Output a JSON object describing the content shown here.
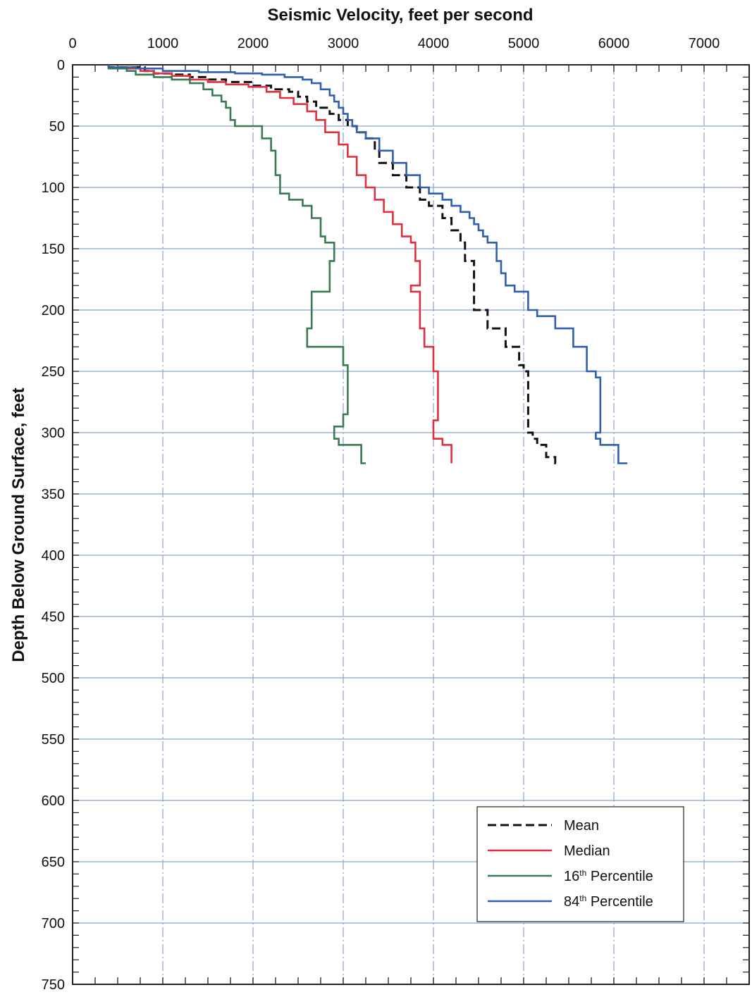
{
  "chart_data": {
    "type": "line",
    "title": "",
    "xlabel": "Seismic Velocity, feet per second",
    "ylabel": "Depth Below Ground Surface, feet",
    "x_axis_position": "top",
    "y_axis_inverted": true,
    "xlim": [
      0,
      7500
    ],
    "ylim": [
      0,
      750
    ],
    "x_ticks": [
      "0",
      "1000",
      "2000",
      "3000",
      "4000",
      "5000",
      "6000",
      "7000"
    ],
    "y_ticks": [
      "0",
      "50",
      "100",
      "150",
      "200",
      "250",
      "300",
      "350",
      "400",
      "450",
      "500",
      "550",
      "600",
      "650",
      "700",
      "750"
    ],
    "grid": true,
    "legend_position": "bottom-right",
    "series": [
      {
        "name": "Mean",
        "color": "#111111",
        "style": "dashed",
        "points": [
          [
            400,
            0
          ],
          [
            800,
            2
          ],
          [
            900,
            5
          ],
          [
            1100,
            7
          ],
          [
            1300,
            8
          ],
          [
            1500,
            10
          ],
          [
            1700,
            12
          ],
          [
            2000,
            14
          ],
          [
            2200,
            17
          ],
          [
            2400,
            20
          ],
          [
            2500,
            22
          ],
          [
            2600,
            26
          ],
          [
            2700,
            30
          ],
          [
            2850,
            35
          ],
          [
            2950,
            40
          ],
          [
            3050,
            45
          ],
          [
            3150,
            50
          ],
          [
            3250,
            55
          ],
          [
            3350,
            60
          ],
          [
            3400,
            70
          ],
          [
            3550,
            80
          ],
          [
            3700,
            90
          ],
          [
            3850,
            100
          ],
          [
            3950,
            110
          ],
          [
            4100,
            115
          ],
          [
            4200,
            125
          ],
          [
            4300,
            135
          ],
          [
            4350,
            145
          ],
          [
            4450,
            160
          ],
          [
            4450,
            170
          ],
          [
            4450,
            185
          ],
          [
            4600,
            200
          ],
          [
            4800,
            215
          ],
          [
            4950,
            230
          ],
          [
            5000,
            245
          ],
          [
            5050,
            250
          ],
          [
            5050,
            260
          ],
          [
            5050,
            275
          ],
          [
            5050,
            290
          ],
          [
            5100,
            300
          ],
          [
            5150,
            305
          ],
          [
            5250,
            310
          ],
          [
            5350,
            320
          ],
          [
            5400,
            325
          ]
        ]
      },
      {
        "name": "Median",
        "color": "#e0303f",
        "style": "solid",
        "points": [
          [
            400,
            0
          ],
          [
            750,
            3
          ],
          [
            900,
            5
          ],
          [
            1100,
            7
          ],
          [
            1300,
            9
          ],
          [
            1500,
            12
          ],
          [
            1700,
            14
          ],
          [
            1950,
            16
          ],
          [
            2150,
            18
          ],
          [
            2300,
            22
          ],
          [
            2450,
            27
          ],
          [
            2600,
            32
          ],
          [
            2700,
            38
          ],
          [
            2800,
            45
          ],
          [
            2950,
            55
          ],
          [
            3050,
            65
          ],
          [
            3150,
            75
          ],
          [
            3250,
            90
          ],
          [
            3350,
            100
          ],
          [
            3450,
            110
          ],
          [
            3550,
            120
          ],
          [
            3650,
            130
          ],
          [
            3750,
            140
          ],
          [
            3800,
            145
          ],
          [
            3850,
            160
          ],
          [
            3850,
            170
          ],
          [
            3750,
            180
          ],
          [
            3850,
            185
          ],
          [
            3850,
            200
          ],
          [
            3900,
            215
          ],
          [
            4000,
            230
          ],
          [
            4050,
            250
          ],
          [
            4050,
            265
          ],
          [
            4050,
            280
          ],
          [
            4000,
            290
          ],
          [
            4000,
            300
          ],
          [
            4100,
            305
          ],
          [
            4200,
            310
          ],
          [
            4200,
            325
          ]
        ]
      },
      {
        "name": "16th Percentile",
        "color": "#3a7a52",
        "style": "solid",
        "points": [
          [
            400,
            0
          ],
          [
            600,
            3
          ],
          [
            700,
            5
          ],
          [
            900,
            8
          ],
          [
            1100,
            10
          ],
          [
            1300,
            12
          ],
          [
            1450,
            15
          ],
          [
            1550,
            20
          ],
          [
            1650,
            25
          ],
          [
            1700,
            30
          ],
          [
            1750,
            35
          ],
          [
            1800,
            45
          ],
          [
            2100,
            50
          ],
          [
            2200,
            60
          ],
          [
            2250,
            70
          ],
          [
            2250,
            80
          ],
          [
            2300,
            90
          ],
          [
            2300,
            100
          ],
          [
            2400,
            105
          ],
          [
            2550,
            110
          ],
          [
            2650,
            115
          ],
          [
            2750,
            125
          ],
          [
            2800,
            140
          ],
          [
            2900,
            145
          ],
          [
            2900,
            155
          ],
          [
            2850,
            160
          ],
          [
            2850,
            180
          ],
          [
            2650,
            185
          ],
          [
            2650,
            200
          ],
          [
            2600,
            215
          ],
          [
            3000,
            230
          ],
          [
            3050,
            245
          ],
          [
            3050,
            260
          ],
          [
            3050,
            275
          ],
          [
            3000,
            285
          ],
          [
            2900,
            295
          ],
          [
            2950,
            305
          ],
          [
            3200,
            310
          ],
          [
            3250,
            325
          ]
        ]
      },
      {
        "name": "84th Percentile",
        "color": "#2f5fae",
        "style": "solid",
        "points": [
          [
            400,
            0
          ],
          [
            700,
            2
          ],
          [
            1000,
            3
          ],
          [
            1400,
            5
          ],
          [
            1800,
            6
          ],
          [
            2100,
            7
          ],
          [
            2350,
            8
          ],
          [
            2550,
            10
          ],
          [
            2650,
            12
          ],
          [
            2750,
            15
          ],
          [
            2850,
            20
          ],
          [
            2900,
            25
          ],
          [
            2950,
            30
          ],
          [
            3000,
            35
          ],
          [
            3050,
            40
          ],
          [
            3100,
            45
          ],
          [
            3150,
            50
          ],
          [
            3250,
            55
          ],
          [
            3400,
            60
          ],
          [
            3550,
            70
          ],
          [
            3700,
            80
          ],
          [
            3850,
            90
          ],
          [
            3950,
            100
          ],
          [
            4100,
            105
          ],
          [
            4200,
            110
          ],
          [
            4300,
            115
          ],
          [
            4400,
            120
          ],
          [
            4450,
            125
          ],
          [
            4500,
            130
          ],
          [
            4550,
            135
          ],
          [
            4600,
            140
          ],
          [
            4700,
            145
          ],
          [
            4750,
            160
          ],
          [
            4800,
            170
          ],
          [
            4900,
            180
          ],
          [
            5050,
            185
          ],
          [
            5150,
            200
          ],
          [
            5350,
            205
          ],
          [
            5550,
            215
          ],
          [
            5700,
            230
          ],
          [
            5800,
            250
          ],
          [
            5850,
            255
          ],
          [
            5850,
            270
          ],
          [
            5850,
            285
          ],
          [
            5800,
            300
          ],
          [
            5850,
            305
          ],
          [
            6050,
            310
          ],
          [
            6150,
            325
          ]
        ]
      }
    ]
  },
  "legend": {
    "items": [
      {
        "label": "Mean",
        "color": "#111111",
        "style": "dashed"
      },
      {
        "label": "Median",
        "color": "#e0303f",
        "style": "solid"
      },
      {
        "label": "16th Percentile",
        "color": "#3a7a52",
        "style": "solid",
        "sup": "th"
      },
      {
        "label": "84th Percentile",
        "color": "#2f5fae",
        "style": "solid",
        "sup": "th"
      }
    ]
  },
  "colors": {
    "grid": "#8aa4cf",
    "axis": "#222222"
  }
}
